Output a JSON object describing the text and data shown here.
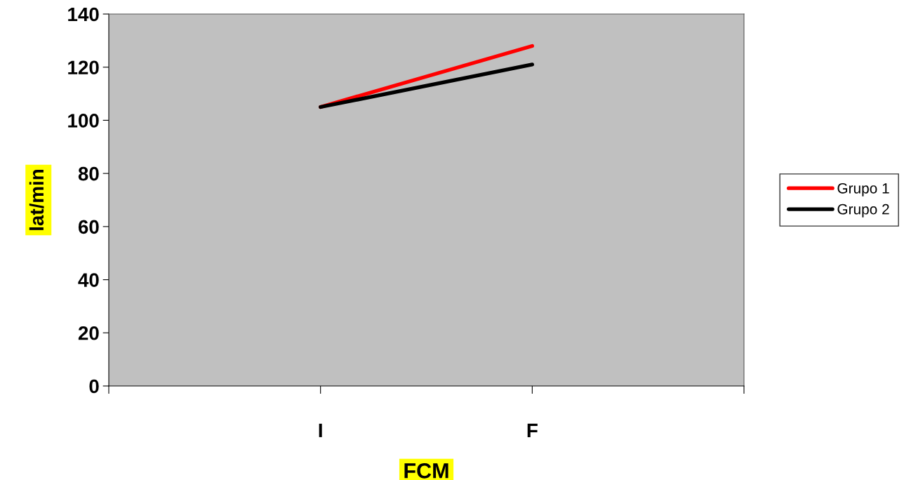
{
  "chart_data": {
    "type": "line",
    "xlabel": "FCM",
    "ylabel": "lat/min",
    "categories": [
      null,
      "I",
      "F",
      null
    ],
    "series": [
      {
        "name": "Grupo 1",
        "color": "#ff0000",
        "values": [
          null,
          105,
          128,
          null
        ]
      },
      {
        "name": "Grupo 2",
        "color": "#000000",
        "values": [
          null,
          105,
          121,
          null
        ]
      }
    ],
    "ylim": [
      0,
      140
    ],
    "yticks": [
      0,
      20,
      40,
      60,
      80,
      100,
      120,
      140
    ],
    "grid": false,
    "legend": "right",
    "marker": "none",
    "line_style": "solid"
  }
}
